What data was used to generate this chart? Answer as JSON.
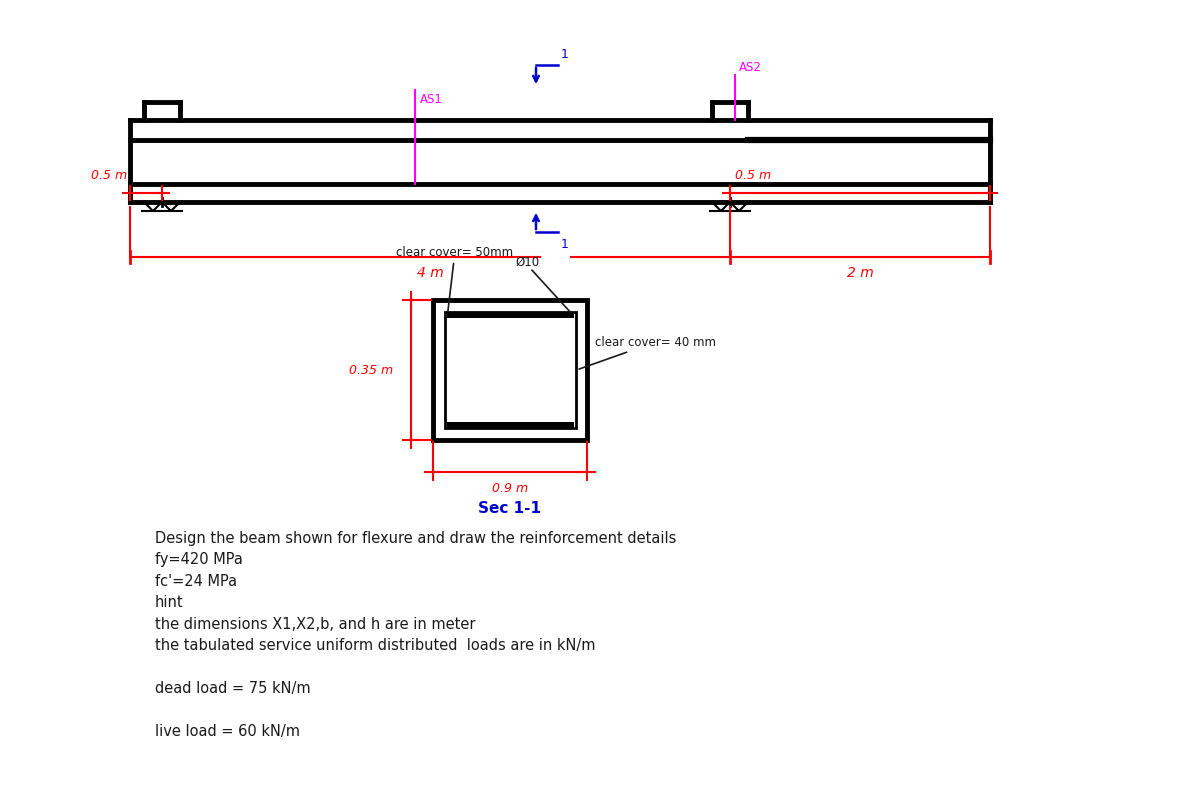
{
  "bg_color": "#ffffff",
  "beam_color": "#000000",
  "dim_color": "#ff0000",
  "blue": "#0000cd",
  "magenta": "#ff00ff",
  "dark": "#1a1a1a",
  "beam_lw": 3.5,
  "dim_lw": 1.5,
  "text_main": "Design the beam shown for flexure and draw the reinforcement details",
  "text_fy": "fy=420 MPa",
  "text_fc": "fc'=24 MPa",
  "text_hint": "hint",
  "text_dim_hint": "the dimensions X1,X2,b, and h are in meter",
  "text_load_hint": "the tabulated service uniform distributed  loads are in kN/m",
  "text_dead": "dead load = 75 kN/m",
  "text_live": "live load = 60 kN/m",
  "text_sec": "Sec 1-1",
  "text_09m": "0.9 m",
  "text_035m": "0.35 m",
  "text_4m": "4 m",
  "text_2m": "2 m",
  "text_05m_left": "0.5 m",
  "text_05m_right": "0.5 m",
  "text_clear50": "clear cover= 50mm",
  "text_dia10": "Ø10",
  "text_clear40": "clear cover= 40 mm",
  "text_AS1": "AS1",
  "text_AS2": "AS2"
}
